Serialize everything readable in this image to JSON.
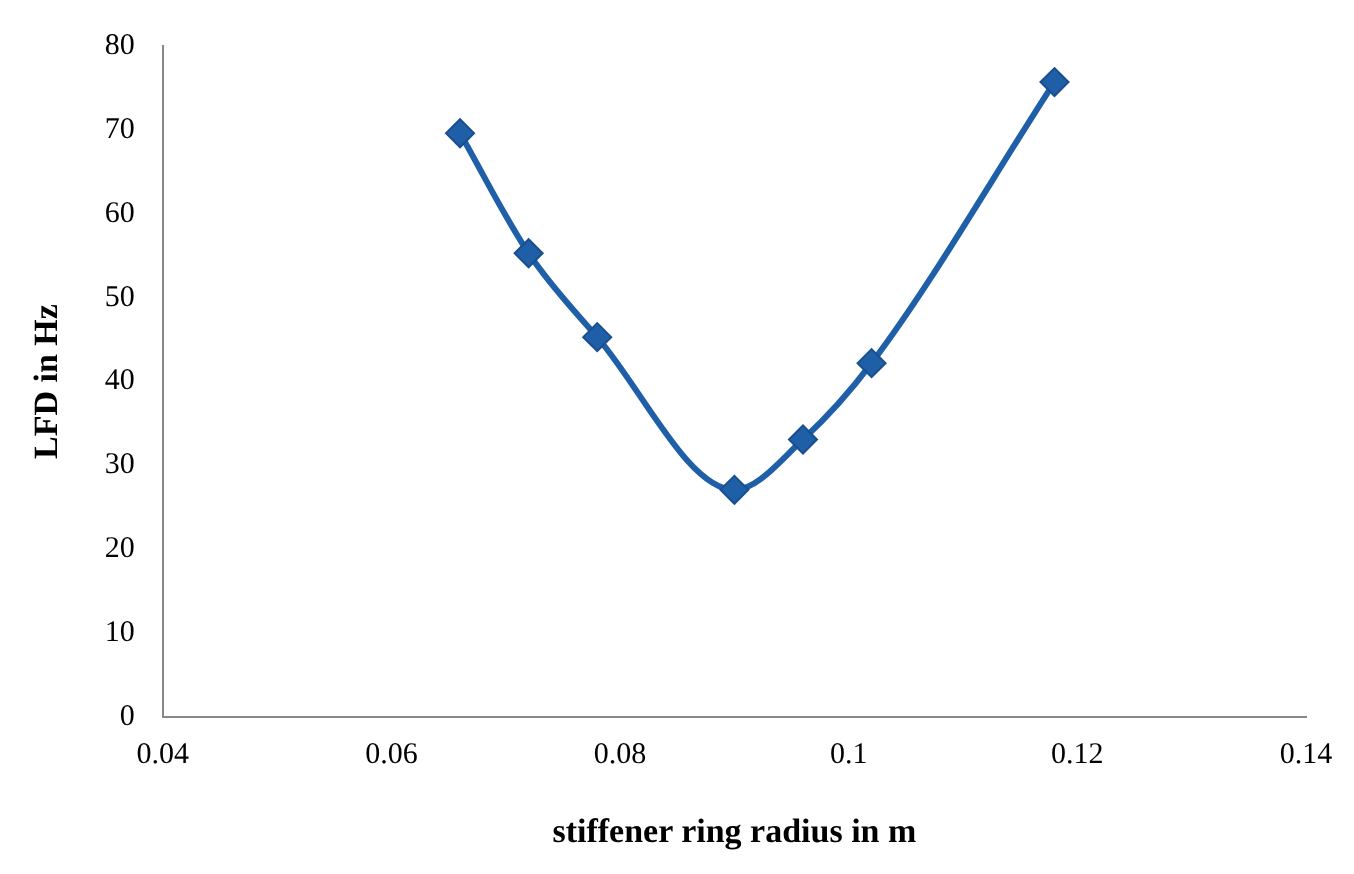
{
  "chart_data": {
    "type": "line",
    "xlabel": "stiffener ring radius in m",
    "ylabel": "LFD in Hz",
    "x": [
      0.066,
      0.072,
      0.078,
      0.09,
      0.096,
      0.102,
      0.118
    ],
    "series": [
      {
        "color": "#1f5fa8",
        "values": [
          69.6,
          55.3,
          45.3,
          27.1,
          33.1,
          42.2,
          75.7
        ]
      }
    ],
    "xlim": [
      0.04,
      0.14
    ],
    "xticks": [
      0.04,
      0.06,
      0.08,
      0.1,
      0.12,
      0.14
    ],
    "ylim": [
      0,
      80
    ],
    "yticks": [
      0,
      10,
      20,
      30,
      40,
      50,
      60,
      70,
      80
    ],
    "grid": false,
    "legend": false,
    "marker": "diamond",
    "line_style": "solid"
  }
}
